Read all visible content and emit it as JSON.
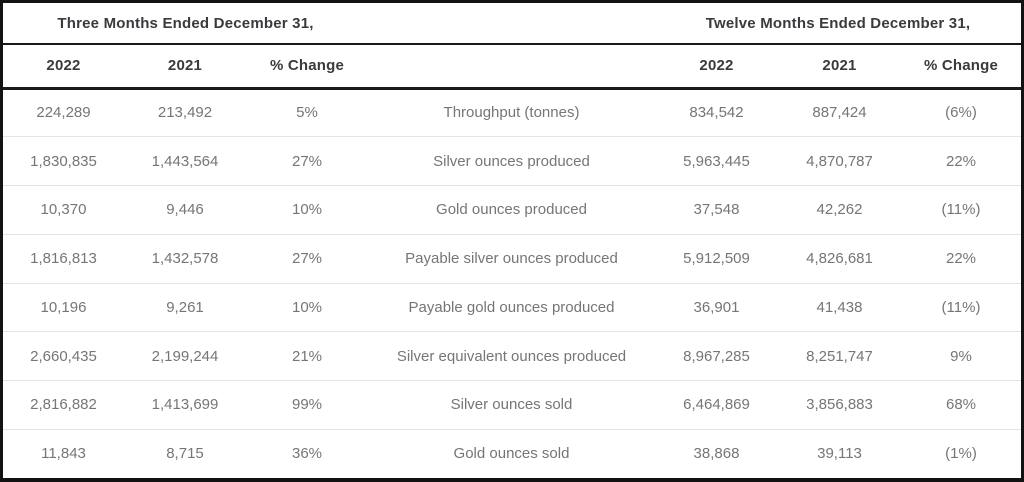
{
  "colors": {
    "frame_border": "#121212",
    "header_rule": "#1a1a1a",
    "row_divider": "#e4e4e6",
    "header_text": "#3a3a3f",
    "data_text": "#75757a",
    "background": "#ffffff"
  },
  "table": {
    "three_months": {
      "title": "Three Months Ended December 31,",
      "columns": [
        "2022",
        "2021",
        "% Change"
      ]
    },
    "twelve_months": {
      "title": "Twelve Months Ended December 31,",
      "columns": [
        "2022",
        "2021",
        "% Change"
      ]
    },
    "rows": [
      {
        "label": "Throughput (tonnes)",
        "three_months": {
          "y2022": "224,289",
          "y2021": "213,492",
          "pct_change": "5%"
        },
        "twelve_months": {
          "y2022": "834,542",
          "y2021": "887,424",
          "pct_change": "(6%)"
        }
      },
      {
        "label": "Silver ounces produced",
        "three_months": {
          "y2022": "1,830,835",
          "y2021": "1,443,564",
          "pct_change": "27%"
        },
        "twelve_months": {
          "y2022": "5,963,445",
          "y2021": "4,870,787",
          "pct_change": "22%"
        }
      },
      {
        "label": "Gold ounces produced",
        "three_months": {
          "y2022": "10,370",
          "y2021": "9,446",
          "pct_change": "10%"
        },
        "twelve_months": {
          "y2022": "37,548",
          "y2021": "42,262",
          "pct_change": "(11%)"
        }
      },
      {
        "label": "Payable silver ounces produced",
        "three_months": {
          "y2022": "1,816,813",
          "y2021": "1,432,578",
          "pct_change": "27%"
        },
        "twelve_months": {
          "y2022": "5,912,509",
          "y2021": "4,826,681",
          "pct_change": "22%"
        }
      },
      {
        "label": "Payable gold ounces produced",
        "three_months": {
          "y2022": "10,196",
          "y2021": "9,261",
          "pct_change": "10%"
        },
        "twelve_months": {
          "y2022": "36,901",
          "y2021": "41,438",
          "pct_change": "(11%)"
        }
      },
      {
        "label": "Silver equivalent ounces produced",
        "three_months": {
          "y2022": "2,660,435",
          "y2021": "2,199,244",
          "pct_change": "21%"
        },
        "twelve_months": {
          "y2022": "8,967,285",
          "y2021": "8,251,747",
          "pct_change": "9%"
        }
      },
      {
        "label": "Silver ounces sold",
        "three_months": {
          "y2022": "2,816,882",
          "y2021": "1,413,699",
          "pct_change": "99%"
        },
        "twelve_months": {
          "y2022": "6,464,869",
          "y2021": "3,856,883",
          "pct_change": "68%"
        }
      },
      {
        "label": "Gold ounces sold",
        "three_months": {
          "y2022": "11,843",
          "y2021": "8,715",
          "pct_change": "36%"
        },
        "twelve_months": {
          "y2022": "38,868",
          "y2021": "39,113",
          "pct_change": "(1%)"
        }
      }
    ]
  }
}
